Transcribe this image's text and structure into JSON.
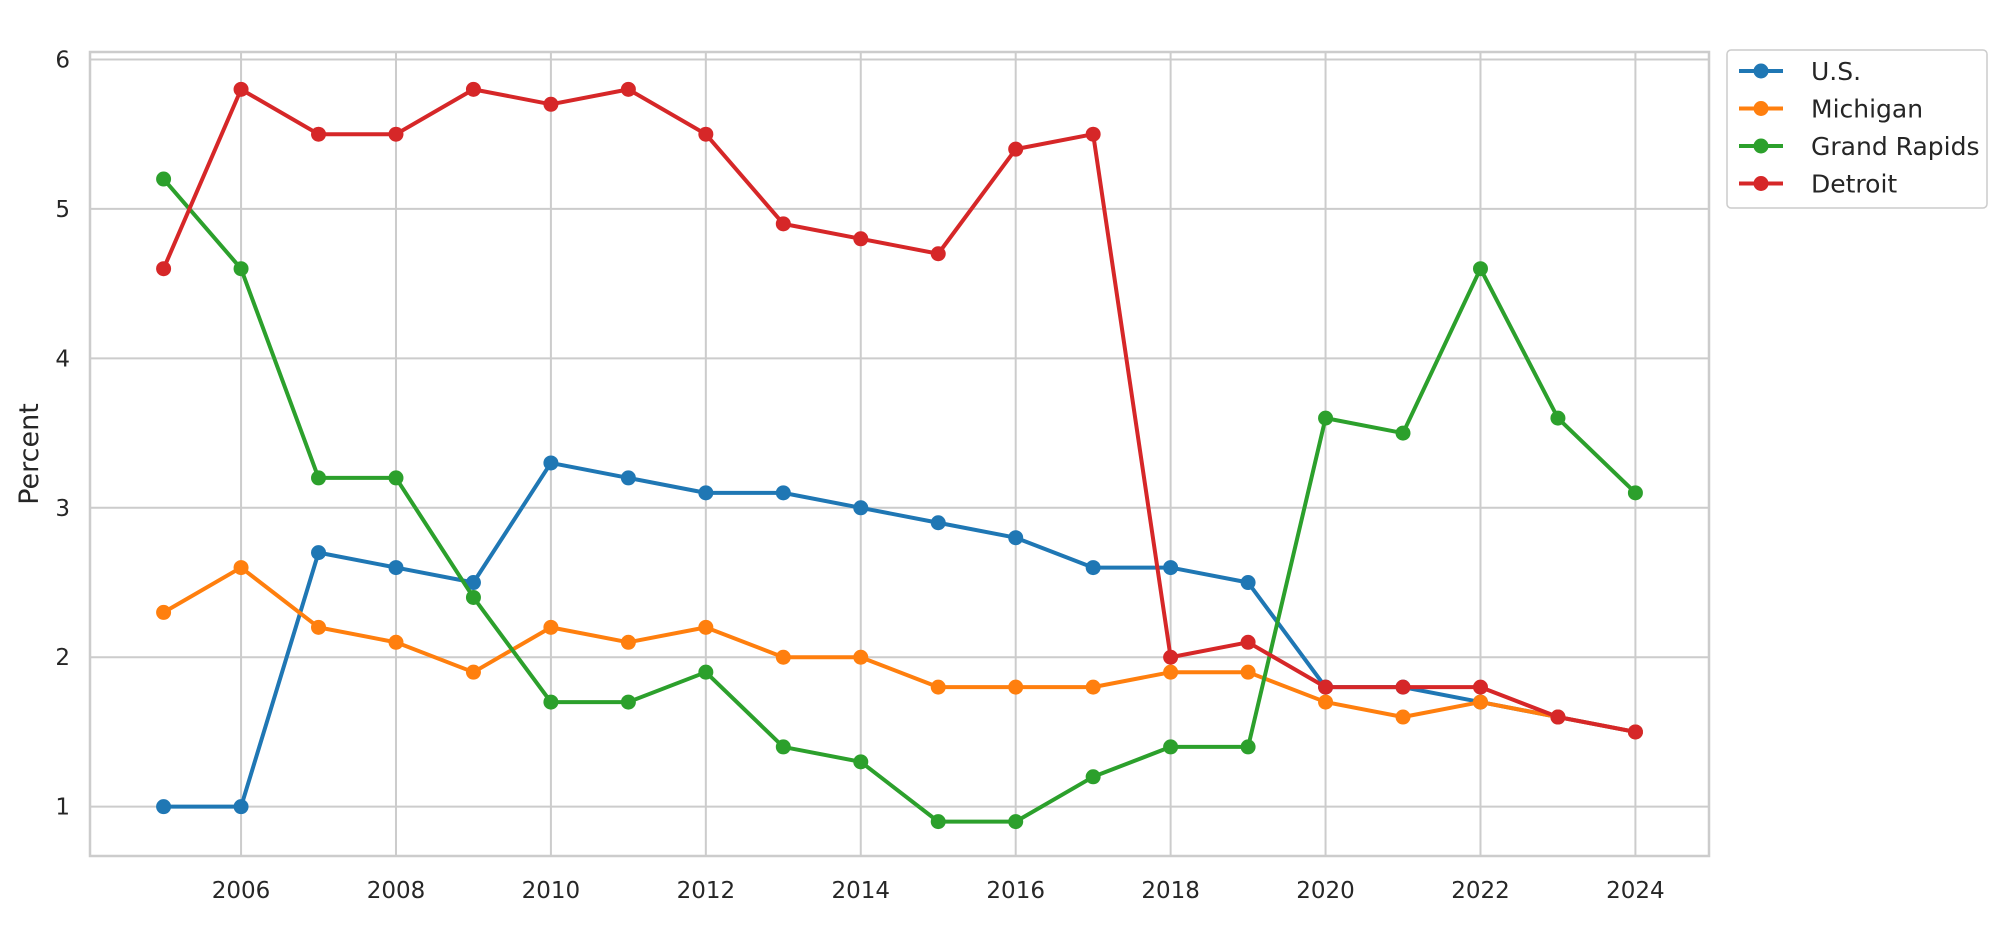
{
  "chart_data": {
    "type": "line",
    "title": "",
    "xlabel": "",
    "ylabel": "Percent",
    "x": [
      2005,
      2006,
      2007,
      2008,
      2009,
      2010,
      2011,
      2012,
      2013,
      2014,
      2015,
      2016,
      2017,
      2018,
      2019,
      2020,
      2021,
      2022,
      2023,
      2024
    ],
    "xticks": [
      2006,
      2008,
      2010,
      2012,
      2014,
      2016,
      2018,
      2020,
      2022,
      2024
    ],
    "yticks": [
      1,
      2,
      3,
      4,
      5,
      6
    ],
    "xlim": [
      2004.05,
      2024.95
    ],
    "ylim": [
      0.67,
      6.05
    ],
    "grid": true,
    "legend_position": "outside-top-right",
    "series": [
      {
        "name": "U.S.",
        "color": "#1f77b4",
        "values": [
          1.0,
          1.0,
          2.7,
          2.6,
          2.5,
          3.3,
          3.2,
          3.1,
          3.1,
          3.0,
          2.9,
          2.8,
          2.6,
          2.6,
          2.5,
          1.8,
          1.8,
          1.7,
          1.6,
          1.5
        ]
      },
      {
        "name": "Michigan",
        "color": "#ff7f0e",
        "values": [
          2.3,
          2.6,
          2.2,
          2.1,
          1.9,
          2.2,
          2.1,
          2.2,
          2.0,
          2.0,
          1.8,
          1.8,
          1.8,
          1.9,
          1.9,
          1.7,
          1.6,
          1.7,
          1.6,
          1.5
        ]
      },
      {
        "name": "Grand Rapids",
        "color": "#2ca02c",
        "values": [
          5.2,
          4.6,
          3.2,
          3.2,
          2.4,
          1.7,
          1.7,
          1.9,
          1.4,
          1.3,
          0.9,
          0.9,
          1.2,
          1.4,
          1.4,
          3.6,
          3.5,
          4.6,
          3.6,
          3.1
        ]
      },
      {
        "name": "Detroit",
        "color": "#d62728",
        "values": [
          4.6,
          5.8,
          5.5,
          5.5,
          5.8,
          5.7,
          5.8,
          5.5,
          4.9,
          4.8,
          4.7,
          5.4,
          5.5,
          2.0,
          2.1,
          1.8,
          1.8,
          1.8,
          1.6,
          1.5
        ]
      }
    ]
  }
}
